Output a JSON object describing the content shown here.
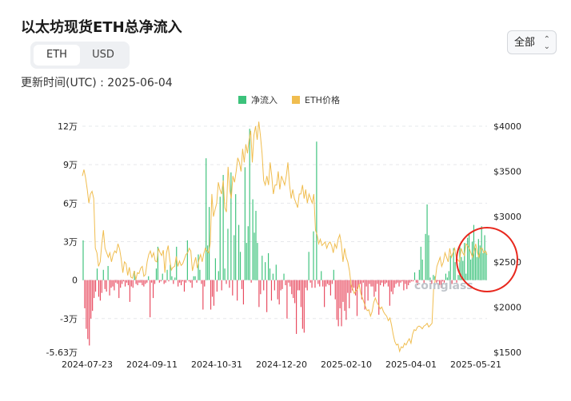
{
  "header": {
    "title": "以太坊现货ETH总净流入",
    "updated": "更新时间(UTC) : 2025-06-04",
    "range_label": "全部"
  },
  "toggle": {
    "eth": "ETH",
    "usd": "USD"
  },
  "watermark": "coinglass",
  "colors": {
    "inflow": "#3cc27b",
    "outflow": "#e84a5f",
    "price": "#f0bd4f"
  },
  "chart_data": {
    "type": "bar",
    "legend": [
      "净流入",
      "ETH价格"
    ],
    "legend_position": "top-center",
    "grid": "horizontal-dashed",
    "x_ticks": [
      "2024-07-23",
      "2024-09-11",
      "2024-10-31",
      "2024-12-20",
      "2025-02-10",
      "2025-04-01",
      "2025-05-21"
    ],
    "y_left_ticks": [
      {
        "v": 120000,
        "label": "12万"
      },
      {
        "v": 90000,
        "label": "9万"
      },
      {
        "v": 60000,
        "label": "6万"
      },
      {
        "v": 30000,
        "label": "3万"
      },
      {
        "v": 0,
        "label": "0"
      },
      {
        "v": -30000,
        "label": "-3万"
      },
      {
        "v": -56300,
        "label": "-5.63万"
      }
    ],
    "y_right_ticks": [
      {
        "v": 4000,
        "label": "$4000"
      },
      {
        "v": 3500,
        "label": "$3500"
      },
      {
        "v": 3000,
        "label": "$3000"
      },
      {
        "v": 2500,
        "label": "$2500"
      },
      {
        "v": 2000,
        "label": "$2000"
      },
      {
        "v": 1500,
        "label": "$1500"
      }
    ],
    "ylim_left": [
      -56300,
      120000
    ],
    "ylim_right": [
      1500,
      4000
    ],
    "series": [
      {
        "name": "净流入",
        "unit": "ETH",
        "values": [
          31000,
          -22000,
          -38000,
          -46000,
          -51000,
          -30000,
          -24000,
          -14000,
          -9000,
          9000,
          -13000,
          -16000,
          -10000,
          8000,
          -7000,
          -9000,
          11000,
          -12000,
          -6000,
          -5000,
          -8000,
          -2000,
          -3000,
          -14000,
          -6000,
          -3000,
          -1000,
          -5000,
          -2000,
          -4000,
          -17000,
          -5000,
          -6000,
          7000,
          -3000,
          -4000,
          -2000,
          -2000,
          -4000,
          -5000,
          -3000,
          -2000,
          3000,
          -29000,
          -2000,
          -14000,
          -3000,
          9000,
          26000,
          -2000,
          -1000,
          5000,
          -3000,
          -2000,
          8000,
          -1000,
          12000,
          3000,
          -3000,
          2000,
          26000,
          -5000,
          -2000,
          -4000,
          -1000,
          -9000,
          -2000,
          31000,
          -1000,
          -2000,
          -6000,
          3000,
          3000,
          -2000,
          20000,
          8000,
          -3000,
          -23000,
          -5000,
          95000,
          27000,
          57000,
          -23000,
          -13000,
          -20000,
          17000,
          -9000,
          7000,
          65000,
          -8000,
          82000,
          9000,
          -3000,
          40000,
          -6000,
          84000,
          -12000,
          35000,
          67000,
          -16000,
          43000,
          22000,
          -7000,
          -19000,
          88000,
          29000,
          42000,
          118000,
          -2000,
          63000,
          37000,
          54000,
          29000,
          -21000,
          -11000,
          19000,
          -8000,
          14000,
          -25000,
          21000,
          9000,
          -16000,
          5000,
          -8000,
          12000,
          -15000,
          -19000,
          -8000,
          -7000,
          5000,
          -4000,
          -30000,
          -2000,
          -5000,
          -11000,
          -14000,
          -18000,
          -42000,
          -8000,
          -8000,
          -21000,
          -38000,
          -41000,
          -6000,
          -8000,
          22000,
          -2000,
          -6000,
          38000,
          -6000,
          108000,
          -3000,
          -5000,
          7000,
          -5000,
          -21000,
          -5000,
          -3000,
          -4000,
          -12000,
          -3000,
          8000,
          -15000,
          -31000,
          -36000,
          -22000,
          -36000,
          -17000,
          -24000,
          -31000,
          -10000,
          -22000,
          -10000,
          -8000,
          -6000,
          -12000,
          -28000,
          -5000,
          -3000,
          -15000,
          -2000,
          -23000,
          -5000,
          -16000,
          -3000,
          -5000,
          -5000,
          -13000,
          -9000,
          -3000,
          -27000,
          -4000,
          -2000,
          -5000,
          -3000,
          -2000,
          -5000,
          -20000,
          -9000,
          -11000,
          -6000,
          -3000,
          -2000,
          -5000,
          -2000,
          -1000,
          -8000,
          -3000,
          -7000,
          -4000,
          -2000,
          -1000,
          -1000,
          6000,
          -2000,
          -4000,
          8000,
          26000,
          16000,
          -3000,
          36000,
          59000,
          35000,
          2000,
          -3000,
          4000,
          3000,
          -2000,
          -1000,
          -4000,
          -6000,
          -1000,
          -2000,
          5000,
          2000,
          7000,
          19000,
          -3000,
          25000,
          14000,
          -2000,
          4000,
          26000,
          18000,
          15000,
          29000,
          5000,
          33000,
          36000,
          16000,
          30000,
          43000,
          25000,
          18000,
          32000,
          27000,
          42000,
          21000,
          35000,
          22000
        ]
      },
      {
        "name": "ETH价格",
        "unit": "USD",
        "axis": "right",
        "values": [
          3450,
          3520,
          3430,
          3300,
          3150,
          3250,
          3280,
          3200,
          2650,
          2600,
          2450,
          2500,
          2700,
          2850,
          2650,
          2600,
          2550,
          2600,
          2500,
          2580,
          2620,
          2600,
          2700,
          2640,
          2530,
          2380,
          2500,
          2480,
          2350,
          2440,
          2330,
          2320,
          2400,
          2300,
          2380,
          2370,
          2430,
          2450,
          2340,
          2360,
          2500,
          2580,
          2620,
          2550,
          2600,
          2510,
          2500,
          2650,
          2600,
          2570,
          2630,
          2380,
          2600,
          2680,
          2520,
          2410,
          2440,
          2450,
          2560,
          2450,
          2510,
          2460,
          2480,
          2530,
          2580,
          2600,
          2650,
          2620,
          2400,
          2480,
          2550,
          2430,
          2520,
          2580,
          2500,
          2590,
          2650,
          2620,
          2600,
          2700,
          3250,
          3000,
          3080,
          3150,
          3380,
          3300,
          3250,
          3400,
          3100,
          3050,
          3550,
          3300,
          3200,
          3450,
          3380,
          3500,
          3650,
          3600,
          3500,
          3750,
          3600,
          3800,
          3700,
          3850,
          3950,
          3600,
          3900,
          4000,
          3850,
          4050,
          3900,
          3700,
          3400,
          3350,
          3450,
          3350,
          3600,
          3450,
          3250,
          3350,
          3350,
          3500,
          3300,
          3450,
          3400,
          3350,
          3450,
          3600,
          3350,
          3200,
          3300,
          3200,
          3150,
          3100,
          3250,
          3250,
          3350,
          3200,
          3300,
          3150,
          3250,
          3200,
          3150,
          3250,
          2850,
          2800,
          2700,
          2750,
          2680,
          2700,
          2720,
          2650,
          2700,
          2720,
          2680,
          2600,
          2700,
          2650,
          2750,
          2800,
          2700,
          2500,
          2650,
          2550,
          2500,
          2400,
          2250,
          2200,
          2150,
          2180,
          2200,
          2250,
          2150,
          2100,
          2050,
          2000,
          1960,
          1970,
          1900,
          1950,
          2050,
          2100,
          2050,
          2020,
          1980,
          2000,
          1950,
          1920,
          1900,
          1850,
          1880,
          1800,
          1700,
          1620,
          1580,
          1590,
          1510,
          1560,
          1550,
          1600,
          1580,
          1620,
          1650,
          1600,
          1700,
          1750,
          1740,
          1780,
          1790,
          1780,
          1760,
          1790,
          1800,
          1820,
          1780,
          1800,
          1820,
          2200,
          2300,
          2450,
          2500,
          2550,
          2450,
          2500,
          2600,
          2550,
          2500,
          2650,
          2550,
          2600,
          2650,
          2550,
          2520,
          2500,
          2650,
          2600,
          2570,
          2700,
          2680,
          2650,
          2600,
          2550,
          2620,
          2700,
          2600,
          2550,
          2650,
          2650,
          2600,
          2620,
          2580
        ]
      }
    ]
  }
}
